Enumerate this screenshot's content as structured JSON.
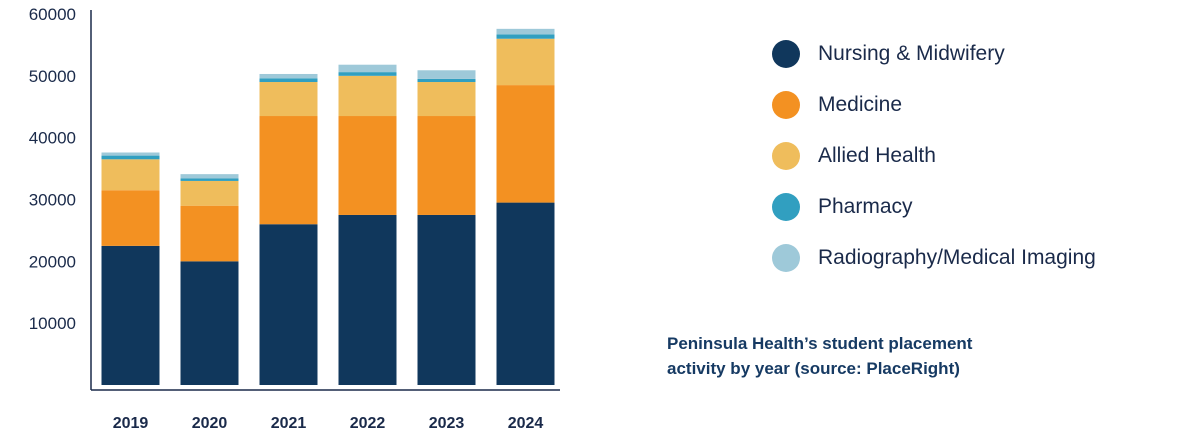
{
  "chart_data": {
    "type": "bar",
    "stacked": true,
    "categories": [
      "2019",
      "2020",
      "2021",
      "2022",
      "2023",
      "2024"
    ],
    "y_ticks": [
      "10000",
      "20000",
      "30000",
      "40000",
      "50000",
      "60000"
    ],
    "ylim": [
      0,
      60000
    ],
    "series": [
      {
        "name": "Nursing & Midwifery",
        "color": "#10375c",
        "values": [
          22500,
          20000,
          26000,
          27500,
          27500,
          29500
        ]
      },
      {
        "name": "Medicine",
        "color": "#f39122",
        "values": [
          9000,
          9000,
          17500,
          16000,
          16000,
          19000
        ]
      },
      {
        "name": "Allied Health",
        "color": "#efbd5c",
        "values": [
          5000,
          4000,
          5500,
          6500,
          5500,
          7500
        ]
      },
      {
        "name": "Pharmacy",
        "color": "#319fc0",
        "values": [
          600,
          400,
          600,
          600,
          500,
          700
        ]
      },
      {
        "name": "Radiography/Medical Imaging",
        "color": "#9ec9d9",
        "values": [
          500,
          700,
          700,
          1200,
          1400,
          900
        ]
      }
    ],
    "legend_position": "right",
    "grid": false
  },
  "caption": {
    "line1": "Peninsula Health’s student placement",
    "line2": "activity by year (source: PlaceRight)"
  }
}
